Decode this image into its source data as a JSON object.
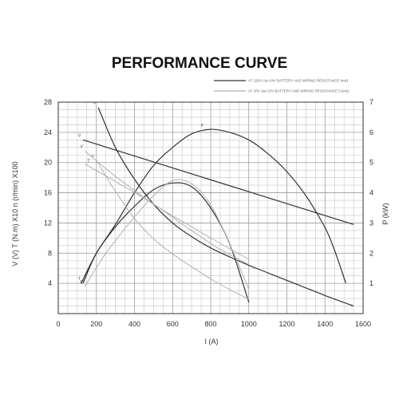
{
  "chart_data": {
    "type": "line",
    "title": "PERFORMANCE CURVE",
    "xlabel": "I  (A)",
    "ylabel": "V  (V)  T (N.m)  X10  n  (r/min)  X100",
    "y2label": "P  (kW)",
    "xlim": [
      0,
      1600
    ],
    "ylim": [
      0,
      28
    ],
    "y2lim": [
      0,
      7
    ],
    "xticks": [
      "0",
      "200",
      "400",
      "600",
      "800",
      "1000",
      "1200",
      "1400",
      "1600"
    ],
    "yticks": [
      "4",
      "8",
      "12",
      "16",
      "20",
      "24",
      "28"
    ],
    "y2ticks": [
      "1",
      "2",
      "3",
      "4",
      "5",
      "6",
      "7"
    ],
    "grid": true,
    "legend_position": "top-right",
    "legend": [
      {
        "text": "AT 120V  Ua=24V  BATTERY AND WIRING RESISTANCE 4mΩ",
        "color": "#333333"
      },
      {
        "text": "AT 20V  Ua=23V  BATTERY AND WIRING RESISTANCE 5.6mΩ",
        "color": "#b0b0b0"
      }
    ],
    "series": [
      {
        "name": "n",
        "axis": "left",
        "color": "#333333",
        "x": [
          210,
          300,
          400,
          500,
          600,
          700,
          800,
          900,
          1000,
          1100,
          1200,
          1300,
          1400,
          1550
        ],
        "y": [
          27.3,
          22.0,
          17.8,
          14.5,
          12.0,
          10.2,
          8.7,
          7.5,
          6.4,
          5.4,
          4.4,
          3.4,
          2.4,
          1.0
        ]
      },
      {
        "name": "V",
        "axis": "left",
        "color": "#333333",
        "x": [
          130,
          1550
        ],
        "y": [
          23.0,
          11.8
        ]
      },
      {
        "name": "P",
        "axis": "right",
        "color": "#333333",
        "x": [
          120,
          200,
          300,
          400,
          500,
          600,
          700,
          800,
          900,
          1000,
          1100,
          1200,
          1300,
          1400,
          1450,
          1510
        ],
        "y": [
          1.0,
          2.0,
          2.95,
          4.0,
          4.9,
          5.5,
          5.95,
          6.1,
          6.0,
          5.75,
          5.3,
          4.7,
          3.9,
          2.85,
          2.1,
          1.0
        ]
      },
      {
        "name": "T",
        "axis": "left",
        "color": "#333333",
        "x": [
          130,
          200,
          300,
          400,
          500,
          600,
          700,
          800,
          900,
          1000
        ],
        "y": [
          4.0,
          8.0,
          11.5,
          14.2,
          16.4,
          17.3,
          16.8,
          14.0,
          9.2,
          1.5
        ]
      },
      {
        "name": "n'",
        "axis": "left",
        "color": "#b0b0b0",
        "x": [
          200,
          300,
          400,
          500,
          600,
          700,
          800,
          900,
          1000
        ],
        "y": [
          20.3,
          16.2,
          12.6,
          9.9,
          7.9,
          6.2,
          4.6,
          3.2,
          1.9
        ]
      },
      {
        "name": "V'",
        "axis": "left",
        "color": "#b0b0b0",
        "x": [
          140,
          300,
          500,
          700,
          850,
          1000
        ],
        "y": [
          21.5,
          18.2,
          14.5,
          11.5,
          9.3,
          7.2
        ]
      },
      {
        "name": "P'",
        "axis": "right",
        "color": "#b0b0b0",
        "x": [
          140,
          250,
          400,
          500,
          600,
          700,
          800,
          900,
          1000
        ],
        "y": [
          0.9,
          2.0,
          3.2,
          3.9,
          4.4,
          4.3,
          3.6,
          2.3,
          0.8
        ]
      },
      {
        "name": "T'",
        "axis": "left",
        "color": "#b0b0b0",
        "x": [
          140,
          300,
          500,
          700,
          850,
          1000
        ],
        "y": [
          19.8,
          17.5,
          14.5,
          11.0,
          8.5,
          6.5
        ]
      }
    ]
  }
}
